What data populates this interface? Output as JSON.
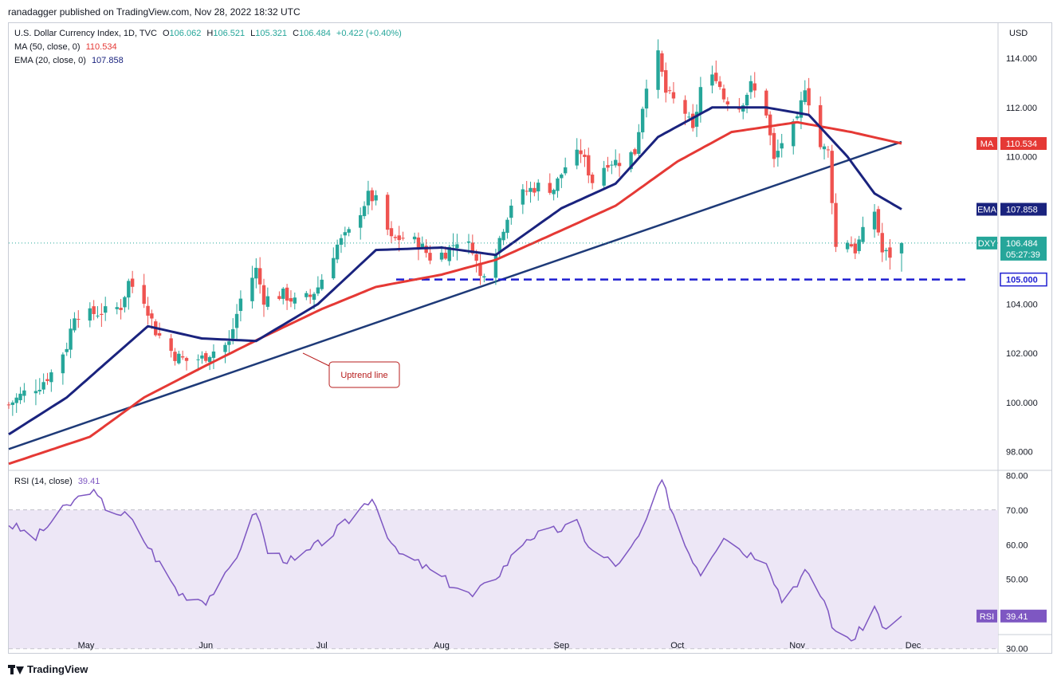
{
  "publisher": "ranadagger published on TradingView.com, Nov 28, 2022 18:32 UTC",
  "footer": {
    "brand": "TradingView"
  },
  "legend": {
    "symbol": "U.S. Dollar Currency Index, 1D, TVC",
    "o_label": "O",
    "o": "106.062",
    "h_label": "H",
    "h": "106.521",
    "l_label": "L",
    "l": "105.321",
    "c_label": "C",
    "c": "106.484",
    "change": "+0.422 (+0.40%)",
    "ma_label": "MA (50, close, 0)",
    "ma_value": "110.534",
    "ema_label": "EMA (20, close, 0)",
    "ema_value": "107.858",
    "rsi_label": "RSI (14, close)",
    "rsi_value": "39.41"
  },
  "colors": {
    "up": "#26a69a",
    "down": "#ef5350",
    "ma": "#e53935",
    "ema": "#1a237e",
    "trend": "#1e3a78",
    "support": "#1f1fd1",
    "rsi": "#7e57c2",
    "rsi_band": "#ede7f6",
    "dxy": "#26a69a"
  },
  "chart_data": [
    {
      "type": "candlestick",
      "title": "U.S. Dollar Currency Index, 1D, TVC",
      "currency": "USD",
      "x_labels": [
        "May",
        "Jun",
        "Jul",
        "Aug",
        "Sep",
        "Oct",
        "Nov",
        "Dec"
      ],
      "y_ticks": [
        "98.000",
        "100.000",
        "102.000",
        "104.000",
        "106.000",
        "108.000",
        "110.000",
        "112.000",
        "114.000"
      ],
      "ylim": [
        97.3,
        115.4
      ],
      "price_path": [
        [
          "Apr 11",
          99.9
        ],
        [
          "Apr 15",
          100.4
        ],
        [
          "Apr 19",
          100.7
        ],
        [
          "Apr 22",
          101.2
        ],
        [
          "Apr 26",
          102.3
        ],
        [
          "Apr 28",
          103.6
        ],
        [
          "May 2",
          103.6
        ],
        [
          "May 6",
          103.7
        ],
        [
          "May 10",
          103.9
        ],
        [
          "May 12",
          104.9
        ],
        [
          "May 16",
          104.2
        ],
        [
          "May 19",
          102.9
        ],
        [
          "May 24",
          101.9
        ],
        [
          "May 27",
          101.7
        ],
        [
          "May 31",
          101.8
        ],
        [
          "Jun 3",
          102.1
        ],
        [
          "Jun 7",
          102.4
        ],
        [
          "Jun 10",
          104.2
        ],
        [
          "Jun 14",
          105.4
        ],
        [
          "Jun 16",
          104.2
        ],
        [
          "Jun 21",
          104.4
        ],
        [
          "Jun 24",
          104.1
        ],
        [
          "Jun 28",
          104.3
        ],
        [
          "Jun 30",
          104.7
        ],
        [
          "Jul 5",
          106.4
        ],
        [
          "Jul 8",
          106.9
        ],
        [
          "Jul 13",
          108.4
        ],
        [
          "Jul 15",
          108.2
        ],
        [
          "Jul 19",
          106.6
        ],
        [
          "Jul 22",
          106.7
        ],
        [
          "Jul 26",
          106.5
        ],
        [
          "Jul 29",
          105.9
        ],
        [
          "Aug 2",
          106.1
        ],
        [
          "Aug 5",
          106.6
        ],
        [
          "Aug 9",
          106.3
        ],
        [
          "Aug 11",
          105.1
        ],
        [
          "Aug 15",
          106.2
        ],
        [
          "Aug 19",
          108.1
        ],
        [
          "Aug 23",
          108.6
        ],
        [
          "Aug 26",
          108.8
        ],
        [
          "Aug 30",
          108.7
        ],
        [
          "Sep 2",
          109.6
        ],
        [
          "Sep 6",
          110.2
        ],
        [
          "Sep 9",
          109.0
        ],
        [
          "Sep 13",
          109.8
        ],
        [
          "Sep 16",
          109.8
        ],
        [
          "Sep 20",
          110.2
        ],
        [
          "Sep 23",
          113.0
        ],
        [
          "Sep 26",
          114.1
        ],
        [
          "Sep 28",
          112.6
        ],
        [
          "Oct 3",
          111.8
        ],
        [
          "Oct 5",
          111.0
        ],
        [
          "Oct 7",
          112.8
        ],
        [
          "Oct 11",
          113.3
        ],
        [
          "Oct 13",
          112.4
        ],
        [
          "Oct 17",
          112.0
        ],
        [
          "Oct 20",
          112.9
        ],
        [
          "Oct 24",
          111.8
        ],
        [
          "Oct 26",
          109.8
        ],
        [
          "Oct 28",
          110.6
        ],
        [
          "Nov 1",
          111.4
        ],
        [
          "Nov 3",
          112.9
        ],
        [
          "Nov 7",
          110.4
        ],
        [
          "Nov 9",
          110.2
        ],
        [
          "Nov 10",
          108.3
        ],
        [
          "Nov 11",
          106.3
        ],
        [
          "Nov 14",
          106.6
        ],
        [
          "Nov 16",
          106.2
        ],
        [
          "Nov 18",
          106.9
        ],
        [
          "Nov 21",
          107.8
        ],
        [
          "Nov 23",
          106.1
        ],
        [
          "Nov 25",
          106.0
        ],
        [
          "Nov 28",
          106.484
        ]
      ],
      "series": [
        {
          "name": "MA (50, close, 0)",
          "last": 110.534,
          "values": [
            [
              "Apr 11",
              97.5
            ],
            [
              "May 2",
              98.6
            ],
            [
              "May 16",
              100.2
            ],
            [
              "Jun 1",
              101.5
            ],
            [
              "Jun 15",
              102.6
            ],
            [
              "Jul 1",
              103.8
            ],
            [
              "Jul 15",
              104.7
            ],
            [
              "Aug 1",
              105.2
            ],
            [
              "Aug 15",
              105.8
            ],
            [
              "Sep 1",
              107.0
            ],
            [
              "Sep 15",
              108.0
            ],
            [
              "Oct 1",
              109.8
            ],
            [
              "Oct 15",
              111.0
            ],
            [
              "Nov 1",
              111.4
            ],
            [
              "Nov 15",
              111.0
            ],
            [
              "Nov 28",
              110.534
            ]
          ]
        },
        {
          "name": "EMA (20, close, 0)",
          "last": 107.858,
          "values": [
            [
              "Apr 11",
              98.7
            ],
            [
              "Apr 26",
              100.2
            ],
            [
              "May 9",
              102.0
            ],
            [
              "May 17",
              103.1
            ],
            [
              "May 31",
              102.6
            ],
            [
              "Jun 14",
              102.5
            ],
            [
              "Jun 30",
              104.0
            ],
            [
              "Jul 15",
              106.2
            ],
            [
              "Aug 1",
              106.3
            ],
            [
              "Aug 15",
              106.0
            ],
            [
              "Sep 1",
              107.9
            ],
            [
              "Sep 15",
              108.9
            ],
            [
              "Sep 26",
              110.8
            ],
            [
              "Oct 10",
              112.0
            ],
            [
              "Oct 24",
              112.0
            ],
            [
              "Nov 4",
              111.7
            ],
            [
              "Nov 14",
              110.0
            ],
            [
              "Nov 21",
              108.5
            ],
            [
              "Nov 28",
              107.858
            ]
          ]
        }
      ],
      "uptrend_line": {
        "label": "Uptrend line",
        "from": [
          "Apr 11",
          98.1
        ],
        "to": [
          "Nov 28",
          110.6
        ]
      },
      "support": {
        "value": 105.0,
        "label": "105.000"
      },
      "price_labels": [
        {
          "tag": "MA",
          "value": "110.534"
        },
        {
          "tag": "EMA",
          "value": "107.858"
        },
        {
          "tag": "DXY",
          "value": "106.484",
          "countdown": "05:27:39"
        }
      ]
    },
    {
      "type": "line",
      "title": "RSI (14, close)",
      "y_ticks": [
        "30.00",
        "40.00",
        "50.00",
        "60.00",
        "70.00",
        "80.00"
      ],
      "ylim": [
        29,
        81
      ],
      "band": [
        30,
        70
      ],
      "last": "39.41",
      "values": [
        [
          "Apr 11",
          66
        ],
        [
          "Apr 18",
          62
        ],
        [
          "Apr 25",
          70
        ],
        [
          "May 2",
          76
        ],
        [
          "May 6",
          71
        ],
        [
          "May 12",
          68
        ],
        [
          "May 18",
          58
        ],
        [
          "May 25",
          46
        ],
        [
          "Jun 1",
          44
        ],
        [
          "Jun 7",
          52
        ],
        [
          "Jun 14",
          70
        ],
        [
          "Jun 17",
          58
        ],
        [
          "Jun 24",
          55
        ],
        [
          "Jun 30",
          60
        ],
        [
          "Jul 7",
          66
        ],
        [
          "Jul 14",
          74
        ],
        [
          "Jul 20",
          58
        ],
        [
          "Jul 27",
          54
        ],
        [
          "Aug 3",
          49
        ],
        [
          "Aug 9",
          45
        ],
        [
          "Aug 16",
          52
        ],
        [
          "Aug 23",
          62
        ],
        [
          "Aug 30",
          64
        ],
        [
          "Sep 5",
          66
        ],
        [
          "Sep 9",
          58
        ],
        [
          "Sep 16",
          54
        ],
        [
          "Sep 21",
          62
        ],
        [
          "Sep 27",
          78
        ],
        [
          "Oct 3",
          60
        ],
        [
          "Oct 7",
          52
        ],
        [
          "Oct 13",
          63
        ],
        [
          "Oct 18",
          58
        ],
        [
          "Oct 24",
          56
        ],
        [
          "Oct 28",
          44
        ],
        [
          "Nov 3",
          52
        ],
        [
          "Nov 8",
          44
        ],
        [
          "Nov 11",
          34
        ],
        [
          "Nov 16",
          33
        ],
        [
          "Nov 21",
          42
        ],
        [
          "Nov 24",
          35
        ],
        [
          "Nov 28",
          39.41
        ]
      ]
    }
  ]
}
